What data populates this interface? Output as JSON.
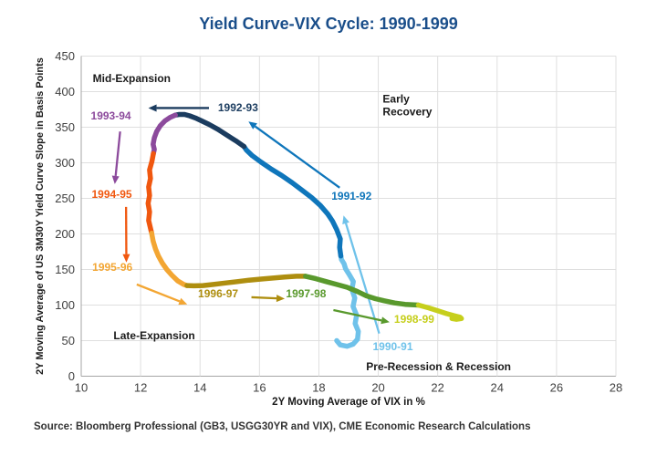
{
  "title": "Yield Curve-VIX Cycle: 1990-1999",
  "source": "Source: Bloomberg Professional (GB3, USGG30YR and VIX), CME Economic Research Calculations",
  "colors": {
    "title": "#1A4E8A",
    "grid": "#DFDFDF",
    "axis": "#A6A6A6",
    "tick_text": "#404040",
    "phase_text": "#1A1A1A"
  },
  "chart_data": {
    "type": "line",
    "title": "Yield Curve-VIX Cycle: 1990-1999",
    "xlabel": "2Y Moving Average of VIX in %",
    "ylabel": "2Y Moving Average of US 3M30Y Yield Curve Slope in Basis Points",
    "xlim": [
      10,
      28
    ],
    "ylim": [
      0,
      450
    ],
    "xticks": [
      10,
      12,
      14,
      16,
      18,
      20,
      22,
      24,
      26,
      28
    ],
    "yticks": [
      0,
      50,
      100,
      150,
      200,
      250,
      300,
      350,
      400,
      450
    ],
    "grid": true,
    "legend": "none",
    "series": [
      {
        "name": "1990-91",
        "color": "#6FC2EA",
        "points": [
          [
            18.6,
            50
          ],
          [
            18.72,
            44
          ],
          [
            18.95,
            42
          ],
          [
            19.15,
            45
          ],
          [
            19.3,
            52
          ],
          [
            19.33,
            63
          ],
          [
            19.22,
            74
          ],
          [
            19.27,
            86
          ],
          [
            19.15,
            98
          ],
          [
            19.21,
            110
          ],
          [
            19.11,
            122
          ],
          [
            19.16,
            133
          ],
          [
            19.02,
            143
          ],
          [
            18.9,
            151
          ],
          [
            18.85,
            158
          ],
          [
            18.76,
            164
          ],
          [
            18.74,
            169
          ]
        ]
      },
      {
        "name": "1991-92",
        "color": "#0F76BB",
        "points": [
          [
            18.74,
            169
          ],
          [
            18.7,
            181
          ],
          [
            18.72,
            193
          ],
          [
            18.6,
            206
          ],
          [
            18.46,
            218
          ],
          [
            18.3,
            228
          ],
          [
            18.05,
            240
          ],
          [
            17.76,
            251
          ],
          [
            17.45,
            261
          ],
          [
            17.1,
            272
          ],
          [
            16.75,
            282
          ],
          [
            16.4,
            291
          ],
          [
            16.05,
            301
          ],
          [
            15.76,
            310
          ],
          [
            15.56,
            318
          ],
          [
            15.48,
            323
          ]
        ]
      },
      {
        "name": "1992-93",
        "color": "#1B3C5F",
        "points": [
          [
            15.48,
            323
          ],
          [
            15.2,
            331
          ],
          [
            14.9,
            339
          ],
          [
            14.6,
            347
          ],
          [
            14.3,
            354
          ],
          [
            14.05,
            359
          ],
          [
            13.85,
            363
          ],
          [
            13.65,
            366
          ],
          [
            13.48,
            368
          ],
          [
            13.3,
            368
          ],
          [
            13.17,
            367
          ]
        ]
      },
      {
        "name": "1993-94",
        "color": "#8C4A9C",
        "points": [
          [
            13.17,
            367
          ],
          [
            13.0,
            364
          ],
          [
            12.82,
            359
          ],
          [
            12.66,
            352
          ],
          [
            12.54,
            344
          ],
          [
            12.46,
            335
          ],
          [
            12.42,
            326
          ],
          [
            12.46,
            319
          ],
          [
            12.43,
            313
          ]
        ]
      },
      {
        "name": "1994-95",
        "color": "#F0570F",
        "points": [
          [
            12.43,
            313
          ],
          [
            12.38,
            302
          ],
          [
            12.3,
            290
          ],
          [
            12.33,
            278
          ],
          [
            12.27,
            266
          ],
          [
            12.3,
            254
          ],
          [
            12.25,
            243
          ],
          [
            12.3,
            231
          ],
          [
            12.27,
            219
          ],
          [
            12.33,
            208
          ],
          [
            12.37,
            201
          ]
        ]
      },
      {
        "name": "1995-96",
        "color": "#F3A633",
        "points": [
          [
            12.37,
            201
          ],
          [
            12.42,
            190
          ],
          [
            12.5,
            179
          ],
          [
            12.6,
            169
          ],
          [
            12.73,
            159
          ],
          [
            12.88,
            150
          ],
          [
            13.05,
            142
          ],
          [
            13.25,
            134
          ],
          [
            13.45,
            129
          ],
          [
            13.56,
            127.5
          ]
        ]
      },
      {
        "name": "1996-97",
        "color": "#AE8E0F",
        "points": [
          [
            13.56,
            127.5
          ],
          [
            13.8,
            127
          ],
          [
            14.1,
            127.5
          ],
          [
            14.45,
            129
          ],
          [
            14.85,
            131
          ],
          [
            15.25,
            133
          ],
          [
            15.65,
            135
          ],
          [
            16.05,
            136.5
          ],
          [
            16.45,
            138
          ],
          [
            16.85,
            139.5
          ],
          [
            17.25,
            140.5
          ],
          [
            17.55,
            140.5
          ]
        ]
      },
      {
        "name": "1997-98",
        "color": "#59992D",
        "points": [
          [
            17.55,
            140.5
          ],
          [
            17.9,
            137
          ],
          [
            18.25,
            133
          ],
          [
            18.6,
            129
          ],
          [
            18.95,
            125
          ],
          [
            19.3,
            119
          ],
          [
            19.6,
            113
          ],
          [
            19.9,
            109
          ],
          [
            20.2,
            106
          ],
          [
            20.55,
            103
          ],
          [
            20.9,
            101
          ],
          [
            21.35,
            100
          ]
        ]
      },
      {
        "name": "1998-99",
        "color": "#C6CF1C",
        "points": [
          [
            21.35,
            100
          ],
          [
            21.7,
            96
          ],
          [
            22.0,
            92
          ],
          [
            22.3,
            88
          ],
          [
            22.55,
            85
          ],
          [
            22.75,
            83
          ],
          [
            22.8,
            81
          ],
          [
            22.62,
            80
          ],
          [
            22.48,
            81
          ]
        ]
      }
    ],
    "year_labels": [
      {
        "text": "1990-91",
        "color": "#6FC2EA",
        "x": 20.49,
        "y": 41.7
      },
      {
        "text": "1991-92",
        "color": "#0F76BB",
        "x": 19.1,
        "y": 253
      },
      {
        "text": "1992-93",
        "color": "#1B3C5F",
        "x": 15.28,
        "y": 378
      },
      {
        "text": "1993-94",
        "color": "#8C4A9C",
        "x": 11.0,
        "y": 365.5
      },
      {
        "text": "1994-95",
        "color": "#F0570F",
        "x": 11.03,
        "y": 256
      },
      {
        "text": "1995-96",
        "color": "#F3A633",
        "x": 11.05,
        "y": 153
      },
      {
        "text": "1996-97",
        "color": "#AE8E0F",
        "x": 14.61,
        "y": 115.5
      },
      {
        "text": "1997-98",
        "color": "#59992D",
        "x": 17.57,
        "y": 115.7
      },
      {
        "text": "1998-99",
        "color": "#C6CF1C",
        "x": 21.21,
        "y": 79.5
      }
    ],
    "phase_labels": [
      {
        "text": "Mid-Expansion",
        "x": 11.7,
        "y": 418.8
      },
      {
        "text": "Early\nRecovery",
        "x": 20.98,
        "y": 380.3,
        "align": "left"
      },
      {
        "text": "Late-Expansion",
        "x": 12.46,
        "y": 57
      },
      {
        "text": "Pre-Recession & Recession",
        "x": 22.03,
        "y": 13.5
      }
    ],
    "arrows": [
      {
        "name": "arrow-1992-93",
        "color": "#1B3C5F",
        "from": [
          14.3,
          377
        ],
        "to": [
          12.26,
          377
        ]
      },
      {
        "name": "arrow-1993-94",
        "color": "#8C4A9C",
        "from": [
          11.31,
          344
        ],
        "to": [
          11.13,
          270
        ]
      },
      {
        "name": "arrow-1994-95",
        "color": "#F0570F",
        "from": [
          11.51,
          238
        ],
        "to": [
          11.52,
          160
        ]
      },
      {
        "name": "arrow-1995-96",
        "color": "#F3A633",
        "from": [
          11.87,
          129
        ],
        "to": [
          13.57,
          101
        ]
      },
      {
        "name": "arrow-1996-97",
        "color": "#AE8E0F",
        "from": [
          15.73,
          111
        ],
        "to": [
          16.85,
          109
        ]
      },
      {
        "name": "arrow-1997-98",
        "color": "#59992D",
        "from": [
          18.49,
          93
        ],
        "to": [
          20.38,
          76
        ]
      },
      {
        "name": "arrow-1991-92",
        "color": "#0F76BB",
        "from": [
          18.7,
          265
        ],
        "to": [
          15.63,
          358
        ]
      },
      {
        "name": "arrow-1990-91",
        "color": "#6FC2EA",
        "from": [
          20.03,
          60
        ],
        "to": [
          18.83,
          226
        ],
        "under": true
      }
    ]
  }
}
